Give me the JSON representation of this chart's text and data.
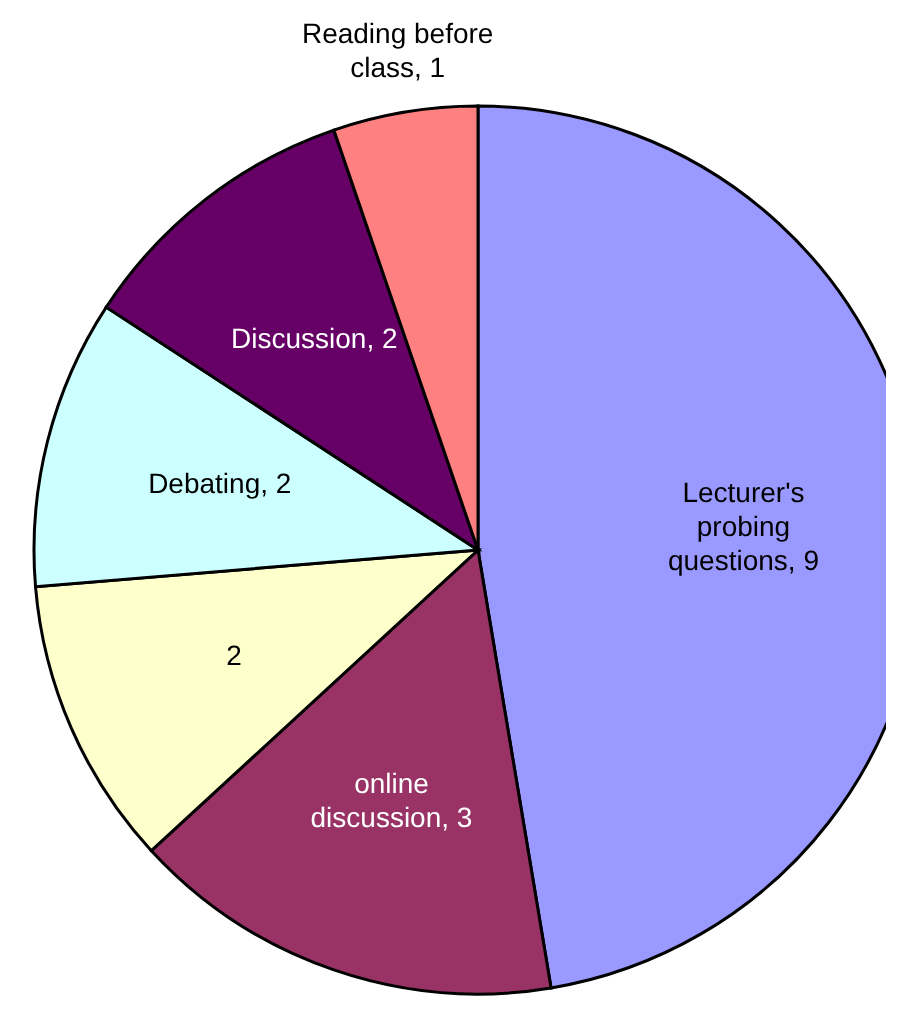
{
  "chart_data": {
    "type": "pie",
    "categories": [
      "Lecturer's probing questions",
      "online discussion",
      null,
      "Debating",
      "Discussion",
      "Reading before class"
    ],
    "values": [
      9,
      3,
      2,
      2,
      2,
      1
    ],
    "colors": [
      "#9999ff",
      "#993366",
      "#ffffcc",
      "#ccffff",
      "#660066",
      "#ff8080"
    ],
    "value_labels": [
      ", 9",
      ", 3",
      "2",
      ", 2",
      ", 2",
      ", 1"
    ]
  }
}
